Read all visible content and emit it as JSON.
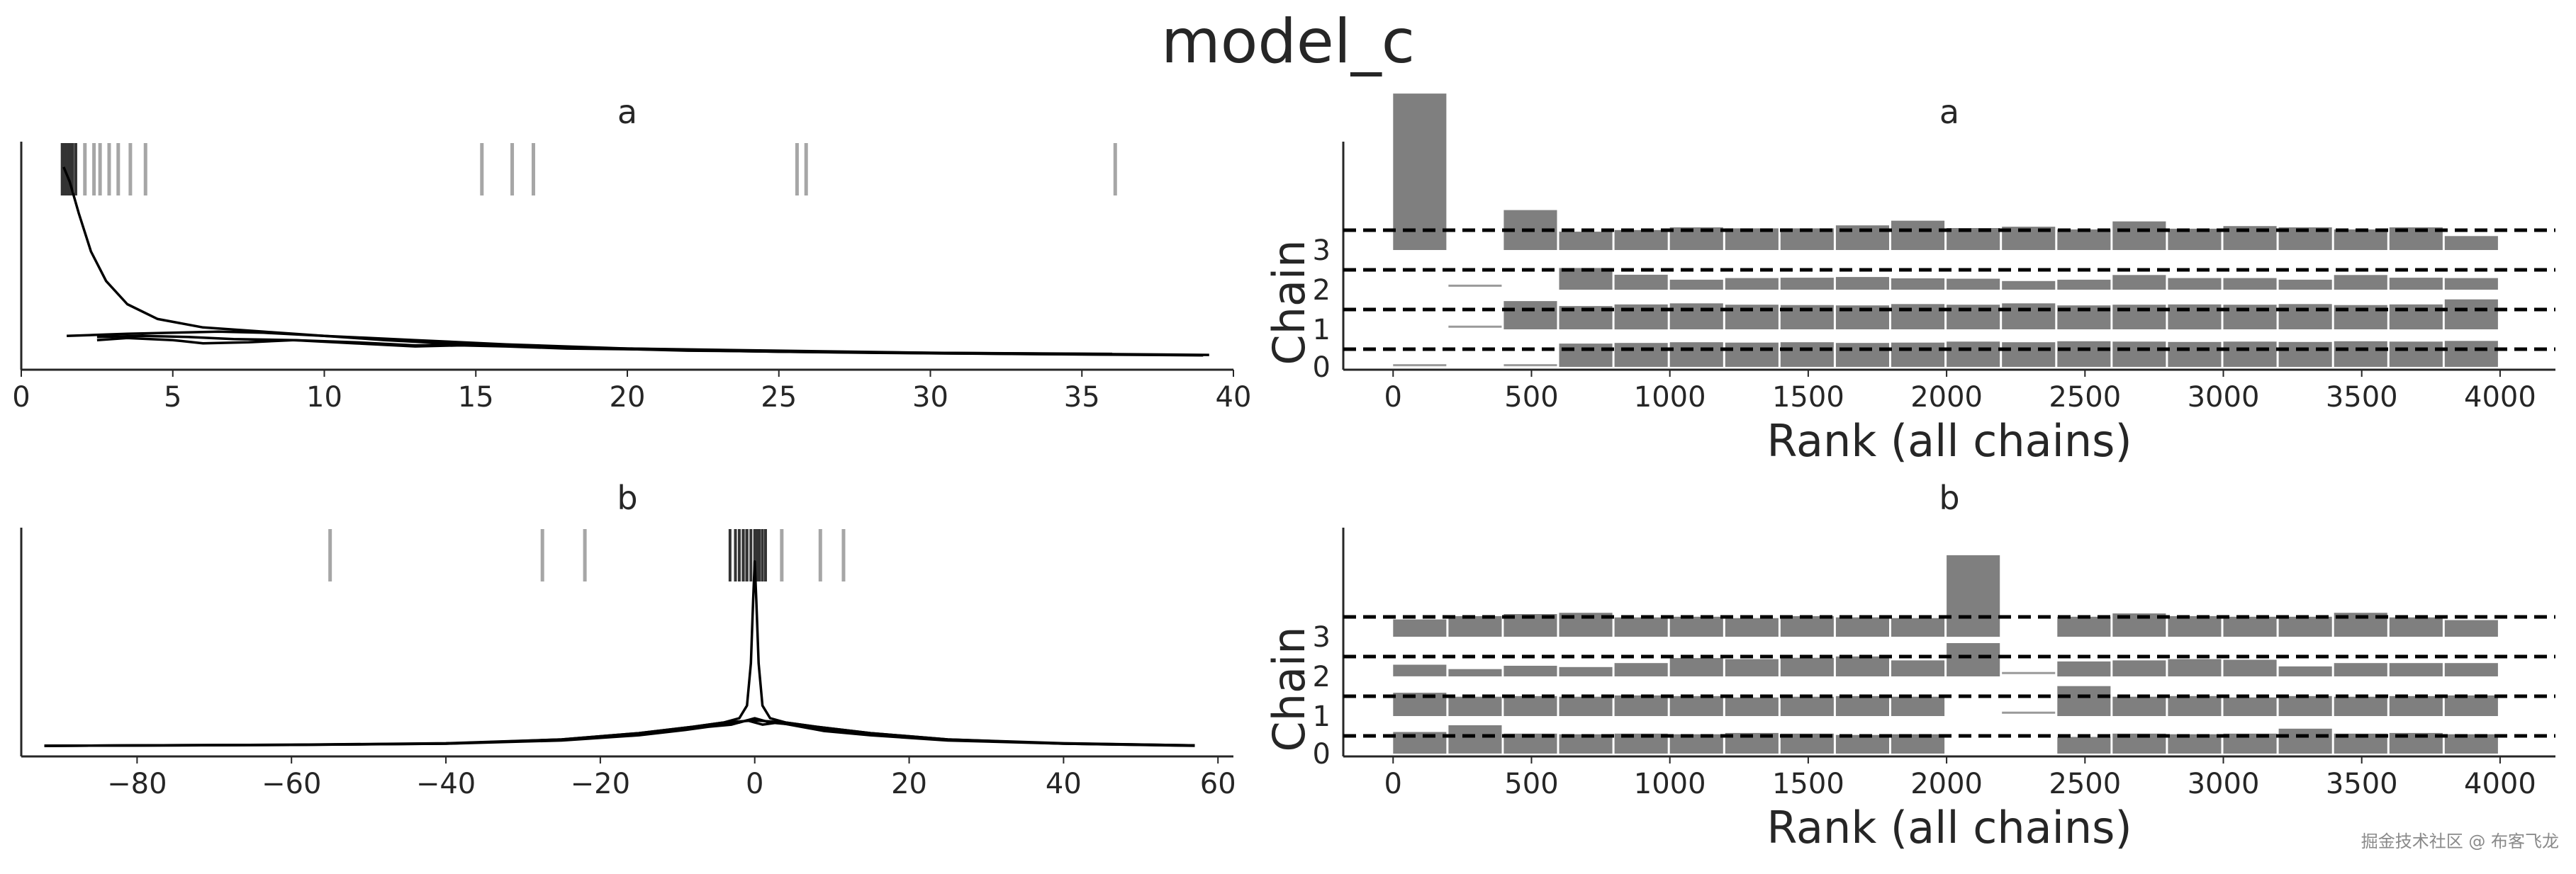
{
  "figure": {
    "suptitle": "model_c",
    "watermark": "掘金技术社区 @ 布客飞龙"
  },
  "chart_data": [
    {
      "panel": "trace-kde-a",
      "type": "line",
      "title": "a",
      "xlim": [
        0,
        40
      ],
      "xticks": [
        0,
        5,
        10,
        15,
        20,
        25,
        30,
        35,
        40
      ],
      "xtick_labels": [
        "0",
        "5",
        "10",
        "15",
        "20",
        "25",
        "30",
        "35",
        "40"
      ],
      "yticks_shown": false,
      "ylim": [
        0,
        1
      ],
      "rug_dark": [
        1.35,
        1.4,
        1.45,
        1.5,
        1.55,
        1.6,
        1.65,
        1.7,
        1.8
      ],
      "rug_light": [
        2.1,
        2.4,
        2.6,
        2.9,
        3.2,
        3.6,
        4.1,
        15.2,
        16.2,
        16.9,
        25.6,
        25.9,
        36.1
      ],
      "series": [
        {
          "x": [
            1.4,
            1.6,
            1.9,
            2.3,
            2.8,
            3.5,
            4.5,
            6,
            8,
            10,
            13,
            16,
            20,
            25,
            30,
            35,
            39.2
          ],
          "y": [
            0.92,
            0.85,
            0.7,
            0.52,
            0.38,
            0.27,
            0.2,
            0.16,
            0.14,
            0.12,
            0.1,
            0.08,
            0.06,
            0.05,
            0.04,
            0.035,
            0.03
          ]
        },
        {
          "x": [
            1.5,
            2.5,
            3.5,
            5,
            6.5,
            8,
            10,
            12,
            14,
            16,
            18,
            20,
            25,
            30,
            35,
            39
          ],
          "y": [
            0.12,
            0.125,
            0.13,
            0.135,
            0.14,
            0.135,
            0.12,
            0.1,
            0.085,
            0.075,
            0.065,
            0.06,
            0.045,
            0.038,
            0.032,
            0.028
          ]
        },
        {
          "x": [
            2.5,
            3.5,
            5,
            6,
            7.5,
            9,
            11,
            13,
            15,
            18,
            22,
            26,
            30,
            36
          ],
          "y": [
            0.1,
            0.11,
            0.1,
            0.085,
            0.09,
            0.1,
            0.09,
            0.075,
            0.08,
            0.065,
            0.05,
            0.045,
            0.04,
            0.035
          ]
        },
        {
          "x": [
            2.5,
            4,
            5.5,
            7,
            9,
            11,
            13,
            14.5,
            16,
            18,
            21,
            24,
            28,
            33,
            36
          ],
          "y": [
            0.115,
            0.12,
            0.115,
            0.105,
            0.1,
            0.085,
            0.07,
            0.075,
            0.07,
            0.06,
            0.055,
            0.047,
            0.04,
            0.034,
            0.032
          ]
        }
      ]
    },
    {
      "panel": "rank-a",
      "type": "bar",
      "title": "a",
      "xlabel": "Rank (all chains)",
      "ylabel": "Chain",
      "xlim": [
        -180,
        4200
      ],
      "xticks": [
        0,
        500,
        1000,
        1500,
        2000,
        2500,
        3000,
        3500,
        4000
      ],
      "xtick_labels": [
        "0",
        "500",
        "1000",
        "1500",
        "2000",
        "2500",
        "3000",
        "3500",
        "4000"
      ],
      "yticks": [
        0,
        1,
        2,
        3
      ],
      "ytick_labels": [
        "0",
        "1",
        "2",
        "3"
      ],
      "bin_width": 200,
      "chains": [
        {
          "name": "0",
          "values": [
            0.05,
            0.0,
            0.05,
            0.7,
            0.72,
            0.74,
            0.73,
            0.74,
            0.72,
            0.73,
            0.76,
            0.74,
            0.77,
            0.76,
            0.75,
            0.76,
            0.75,
            0.77,
            0.76,
            0.78
          ]
        },
        {
          "name": "1",
          "values": [
            0.0,
            0.08,
            0.85,
            0.7,
            0.75,
            0.78,
            0.74,
            0.73,
            0.72,
            0.76,
            0.74,
            0.78,
            0.72,
            0.74,
            0.75,
            0.74,
            0.76,
            0.73,
            0.75,
            0.9
          ]
        },
        {
          "name": "2",
          "values": [
            0.0,
            0.12,
            0.0,
            0.65,
            0.45,
            0.3,
            0.35,
            0.36,
            0.38,
            0.34,
            0.33,
            0.26,
            0.3,
            0.44,
            0.35,
            0.35,
            0.3,
            0.44,
            0.36,
            0.35
          ]
        },
        {
          "name": "3",
          "values": [
            4.7,
            0.0,
            1.2,
            0.55,
            0.6,
            0.68,
            0.65,
            0.65,
            0.74,
            0.88,
            0.66,
            0.7,
            0.62,
            0.86,
            0.64,
            0.72,
            0.68,
            0.62,
            0.68,
            0.42
          ]
        }
      ]
    },
    {
      "panel": "trace-kde-b",
      "type": "line",
      "title": "b",
      "xlim": [
        -95,
        62
      ],
      "xticks": [
        -80,
        -60,
        -40,
        -20,
        0,
        20,
        40,
        60
      ],
      "xtick_labels": [
        "−80",
        "−60",
        "−40",
        "−20",
        "0",
        "20",
        "40",
        "60"
      ],
      "yticks_shown": false,
      "ylim": [
        0,
        1
      ],
      "rug_dark": [
        -3.2,
        -2.5,
        -2,
        -1.5,
        -1,
        -0.5,
        0,
        0.3,
        0.6,
        1,
        1.4
      ],
      "rug_light": [
        -55,
        -27.5,
        -22,
        -1.1,
        3.5,
        8.5,
        11.5
      ],
      "series": [
        {
          "x": [
            -92,
            -60,
            -40,
            -25,
            -15,
            -8,
            -4,
            -2,
            -1,
            -0.5,
            -0.2,
            0,
            0.2,
            0.5,
            1,
            2,
            4,
            8,
            15,
            25,
            40,
            57
          ],
          "y": [
            0.01,
            0.015,
            0.02,
            0.04,
            0.07,
            0.1,
            0.12,
            0.14,
            0.2,
            0.4,
            0.7,
            0.88,
            0.7,
            0.4,
            0.2,
            0.14,
            0.12,
            0.1,
            0.07,
            0.04,
            0.02,
            0.01
          ]
        },
        {
          "x": [
            -92,
            -60,
            -40,
            -25,
            -15,
            -8,
            -4,
            -2,
            0,
            2,
            4,
            8,
            15,
            25,
            40,
            57
          ],
          "y": [
            0.01,
            0.015,
            0.022,
            0.04,
            0.07,
            0.1,
            0.12,
            0.125,
            0.13,
            0.125,
            0.12,
            0.1,
            0.07,
            0.04,
            0.022,
            0.012
          ]
        },
        {
          "x": [
            -92,
            -60,
            -40,
            -25,
            -15,
            -9,
            -6,
            -3,
            -1,
            1,
            3,
            6,
            9,
            15,
            25,
            40,
            57
          ],
          "y": [
            0.01,
            0.014,
            0.02,
            0.035,
            0.06,
            0.085,
            0.1,
            0.11,
            0.13,
            0.11,
            0.12,
            0.1,
            0.08,
            0.06,
            0.035,
            0.02,
            0.011
          ]
        },
        {
          "x": [
            -92,
            -60,
            -40,
            -25,
            -15,
            -9,
            -5,
            -2,
            0,
            2,
            5,
            9,
            15,
            25,
            40,
            57
          ],
          "y": [
            0.01,
            0.014,
            0.021,
            0.038,
            0.065,
            0.095,
            0.11,
            0.12,
            0.14,
            0.12,
            0.11,
            0.09,
            0.065,
            0.038,
            0.021,
            0.012
          ]
        }
      ]
    },
    {
      "panel": "rank-b",
      "type": "bar",
      "title": "b",
      "xlabel": "Rank (all chains)",
      "ylabel": "Chain",
      "xlim": [
        -180,
        4200
      ],
      "xticks": [
        0,
        500,
        1000,
        1500,
        2000,
        2500,
        3000,
        3500,
        4000
      ],
      "xtick_labels": [
        "0",
        "500",
        "1000",
        "1500",
        "2000",
        "2500",
        "3000",
        "3500",
        "4000"
      ],
      "yticks": [
        0,
        1,
        2,
        3
      ],
      "ytick_labels": [
        "0",
        "1",
        "2",
        "3"
      ],
      "bin_width": 200,
      "chains": [
        {
          "name": "0",
          "values": [
            0.65,
            0.85,
            0.6,
            0.58,
            0.6,
            0.58,
            0.62,
            0.6,
            0.56,
            0.58,
            0.0,
            0.0,
            0.5,
            0.6,
            0.58,
            0.6,
            0.75,
            0.6,
            0.62,
            0.58
          ]
        },
        {
          "name": "1",
          "values": [
            0.7,
            0.58,
            0.6,
            0.58,
            0.62,
            0.6,
            0.56,
            0.58,
            0.6,
            0.58,
            0.0,
            0.1,
            0.9,
            0.58,
            0.6,
            0.56,
            0.6,
            0.58,
            0.6,
            0.62
          ]
        },
        {
          "name": "2",
          "values": [
            0.35,
            0.22,
            0.32,
            0.28,
            0.4,
            0.55,
            0.52,
            0.56,
            0.6,
            0.48,
            1.0,
            0.1,
            0.45,
            0.48,
            0.52,
            0.5,
            0.3,
            0.4,
            0.4,
            0.4
          ]
        },
        {
          "name": "3",
          "values": [
            0.52,
            0.62,
            0.68,
            0.72,
            0.58,
            0.6,
            0.56,
            0.62,
            0.58,
            0.56,
            2.45,
            0.0,
            0.6,
            0.7,
            0.62,
            0.6,
            0.6,
            0.72,
            0.58,
            0.5
          ]
        }
      ]
    }
  ]
}
